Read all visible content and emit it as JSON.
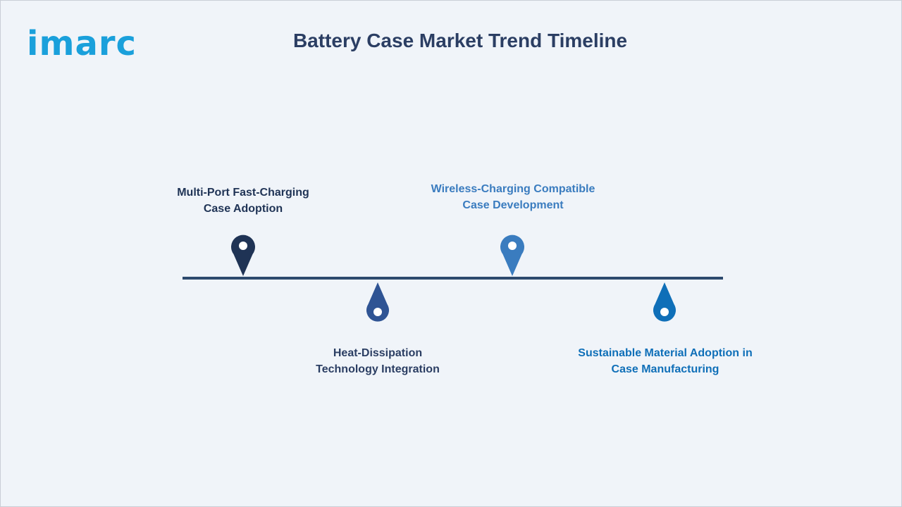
{
  "logo": {
    "text": "imarc"
  },
  "title": "Battery Case Market Trend Timeline",
  "colors": {
    "line": "#2d4a6e",
    "title": "#2b3e63",
    "logo": "#1aa0db"
  },
  "milestones": [
    {
      "line1": "Multi-Port Fast-Charging",
      "line2": "Case Adoption",
      "color": "#1f3355",
      "icon": "map-pin-icon"
    },
    {
      "line1": "Heat-Dissipation",
      "line2": "Technology Integration",
      "color": "#2f5494",
      "icon": "drop-pin-icon"
    },
    {
      "line1": "Wireless-Charging Compatible",
      "line2": "Case Development",
      "color": "#3a7cbf",
      "icon": "map-pin-icon"
    },
    {
      "line1": "Sustainable Material Adoption in",
      "line2": "Case Manufacturing",
      "color": "#0f6fb8",
      "icon": "drop-pin-icon"
    }
  ]
}
